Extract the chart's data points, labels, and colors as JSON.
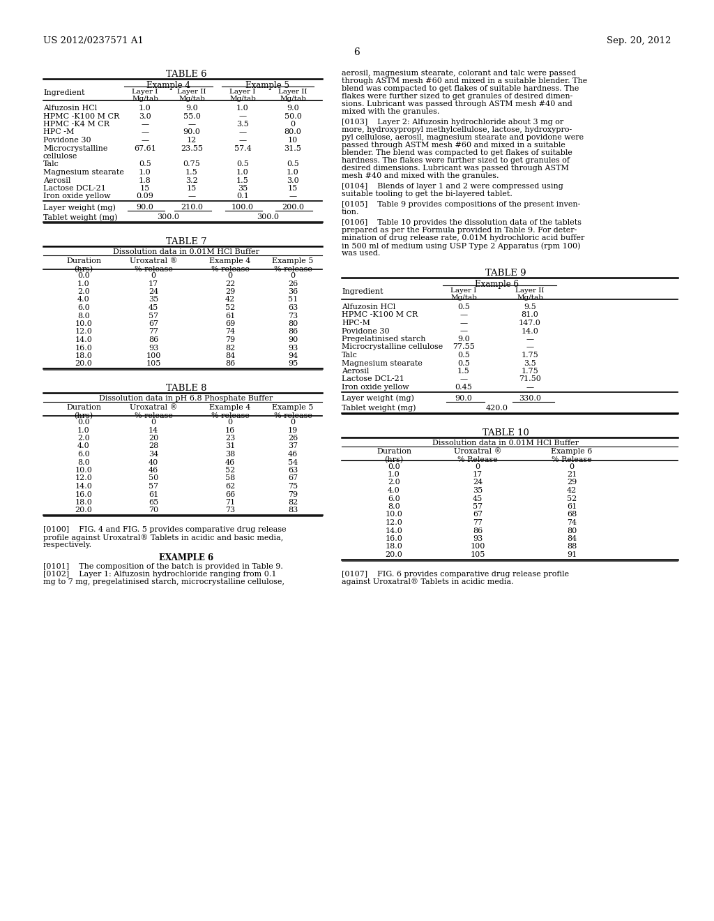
{
  "page_number": "6",
  "patent_number": "US 2012/0237571 A1",
  "patent_date": "Sep. 20, 2012",
  "bg": "#ffffff",
  "table6": {
    "title": "TABLE 6",
    "rows": [
      [
        "Alfuzosin HCl",
        "1.0",
        "9.0",
        "1.0",
        "9.0"
      ],
      [
        "HPMC -K100 M CR",
        "3.0",
        "55.0",
        "—",
        "50.0"
      ],
      [
        "HPMC -K4 M CR",
        "—",
        "—",
        "3.5",
        "0"
      ],
      [
        "HPC -M",
        "—",
        "90.0",
        "—",
        "80.0"
      ],
      [
        "Povidone 30",
        "—",
        "12",
        "—",
        "10"
      ],
      [
        "Microcrystalline",
        "67.61",
        "23.55",
        "57.4",
        "31.5"
      ],
      [
        "cellulose",
        "",
        "",
        "",
        ""
      ],
      [
        "Talc",
        "0.5",
        "0.75",
        "0.5",
        "0.5"
      ],
      [
        "Magnesium stearate",
        "1.0",
        "1.5",
        "1.0",
        "1.0"
      ],
      [
        "Aerosil",
        "1.8",
        "3.2",
        "1.5",
        "3.0"
      ],
      [
        "Lactose DCL-21",
        "15",
        "15",
        "35",
        "15"
      ],
      [
        "Iron oxide yellow",
        "0.09",
        "—",
        "0.1",
        "—"
      ]
    ],
    "layer_weight": [
      "Layer weight (mg)",
      "90.0",
      "210.0",
      "100.0",
      "200.0"
    ],
    "tablet_weight": [
      "Tablet weight (mg)",
      "300.0",
      "300.0"
    ]
  },
  "table7": {
    "title": "TABLE 7",
    "subtitle": "Dissolution data in 0.01M HCl Buffer",
    "col_headers": [
      "Duration\n(hrs)",
      "Uroxatral ®\n% release",
      "Example 4\n% release",
      "Example 5\n% release"
    ],
    "rows": [
      [
        "0.0",
        "0",
        "0",
        "0"
      ],
      [
        "1.0",
        "17",
        "22",
        "26"
      ],
      [
        "2.0",
        "24",
        "29",
        "36"
      ],
      [
        "4.0",
        "35",
        "42",
        "51"
      ],
      [
        "6.0",
        "45",
        "52",
        "63"
      ],
      [
        "8.0",
        "57",
        "61",
        "73"
      ],
      [
        "10.0",
        "67",
        "69",
        "80"
      ],
      [
        "12.0",
        "77",
        "74",
        "86"
      ],
      [
        "14.0",
        "86",
        "79",
        "90"
      ],
      [
        "16.0",
        "93",
        "82",
        "93"
      ],
      [
        "18.0",
        "100",
        "84",
        "94"
      ],
      [
        "20.0",
        "105",
        "86",
        "95"
      ]
    ]
  },
  "table8": {
    "title": "TABLE 8",
    "subtitle": "Dissolution data in pH 6.8 Phosphate Buffer",
    "col_headers": [
      "Duration\n(hrs)",
      "Uroxatral ®\n% release",
      "Example 4\n% release",
      "Example 5\n% release"
    ],
    "rows": [
      [
        "0.0",
        "0",
        "0",
        "0"
      ],
      [
        "1.0",
        "14",
        "16",
        "19"
      ],
      [
        "2.0",
        "20",
        "23",
        "26"
      ],
      [
        "4.0",
        "28",
        "31",
        "37"
      ],
      [
        "6.0",
        "34",
        "38",
        "46"
      ],
      [
        "8.0",
        "40",
        "46",
        "54"
      ],
      [
        "10.0",
        "46",
        "52",
        "63"
      ],
      [
        "12.0",
        "50",
        "58",
        "67"
      ],
      [
        "14.0",
        "57",
        "62",
        "75"
      ],
      [
        "16.0",
        "61",
        "66",
        "79"
      ],
      [
        "18.0",
        "65",
        "71",
        "82"
      ],
      [
        "20.0",
        "70",
        "73",
        "83"
      ]
    ]
  },
  "table9": {
    "title": "TABLE 9",
    "rows": [
      [
        "Alfuzosin HCl",
        "0.5",
        "9.5"
      ],
      [
        "HPMC -K100 M CR",
        "—",
        "81.0"
      ],
      [
        "HPC-M",
        "—",
        "147.0"
      ],
      [
        "Povidone 30",
        "—",
        "14.0"
      ],
      [
        "Pregelatinised starch",
        "9.0",
        "—"
      ],
      [
        "Microcrystalline cellulose",
        "77.55",
        "—"
      ],
      [
        "Talc",
        "0.5",
        "1.75"
      ],
      [
        "Magnesium stearate",
        "0.5",
        "3.5"
      ],
      [
        "Aerosil",
        "1.5",
        "1.75"
      ],
      [
        "Lactose DCL-21",
        "—",
        "71.50"
      ],
      [
        "Iron oxide yellow",
        "0.45",
        "—"
      ]
    ],
    "layer_weight": [
      "Layer weight (mg)",
      "90.0",
      "330.0"
    ],
    "tablet_weight": [
      "Tablet weight (mg)",
      "420.0"
    ]
  },
  "table10": {
    "title": "TABLE 10",
    "subtitle": "Dissolution data in 0.01M HCl Buffer",
    "col_headers": [
      "Duration\n(hrs)",
      "Uroxatral ®\n% Release",
      "Example 6\n% Release"
    ],
    "rows": [
      [
        "0.0",
        "0",
        "0"
      ],
      [
        "1.0",
        "17",
        "21"
      ],
      [
        "2.0",
        "24",
        "29"
      ],
      [
        "4.0",
        "35",
        "42"
      ],
      [
        "6.0",
        "45",
        "52"
      ],
      [
        "8.0",
        "57",
        "61"
      ],
      [
        "10.0",
        "67",
        "68"
      ],
      [
        "12.0",
        "77",
        "74"
      ],
      [
        "14.0",
        "86",
        "80"
      ],
      [
        "16.0",
        "93",
        "84"
      ],
      [
        "18.0",
        "100",
        "88"
      ],
      [
        "20.0",
        "105",
        "91"
      ]
    ]
  },
  "right_text_blocks": [
    [
      "aerosil, magnesium stearate, colorant and talc were passed",
      "through ASTM mesh #60 and mixed in a suitable blender. The",
      "blend was compacted to get flakes of suitable hardness. The",
      "flakes were further sized to get granules of desired dimen-",
      "sions. Lubricant was passed through ASTM mesh #40 and",
      "mixed with the granules."
    ],
    [
      "[0103]    Layer 2: Alfuzosin hydrochloride about 3 mg or",
      "more, hydroxypropyl methylcellulose, lactose, hydroxypro-",
      "pyl cellulose, aerosil, magnesium stearate and povidone were",
      "passed through ASTM mesh #60 and mixed in a suitable",
      "blender. The blend was compacted to get flakes of suitable",
      "hardness. The flakes were further sized to get granules of",
      "desired dimensions. Lubricant was passed through ASTM",
      "mesh #40 and mixed with the granules."
    ],
    [
      "[0104]    Blends of layer 1 and 2 were compressed using",
      "suitable tooling to get the bi-layered tablet."
    ],
    [
      "[0105]    Table 9 provides compositions of the present inven-",
      "tion."
    ],
    [
      "[0106]    Table 10 provides the dissolution data of the tablets",
      "prepared as per the Formula provided in Table 9. For deter-",
      "mination of drug release rate, 0.01M hydrochloric acid buffer",
      "in 500 ml of medium using USP Type 2 Apparatus (rpm 100)",
      "was used."
    ]
  ],
  "left_bottom_text": [
    "[0100]    FIG. 4 and FIG. 5 provides comparative drug release",
    "profile against Uroxatral® Tablets in acidic and basic media,",
    "respectively."
  ],
  "example6_label": "EXAMPLE 6",
  "left_bottom_text2": [
    "[0101]    The composition of the batch is provided in Table 9.",
    "[0102]    Layer 1: Alfuzosin hydrochloride ranging from 0.1",
    "mg to 7 mg, pregelatinised starch, microcrystalline cellulose,"
  ],
  "right_bottom_text": [
    "[0107]    FIG. 6 provides comparative drug release profile",
    "against Uroxatral® Tablets in acidic media."
  ]
}
